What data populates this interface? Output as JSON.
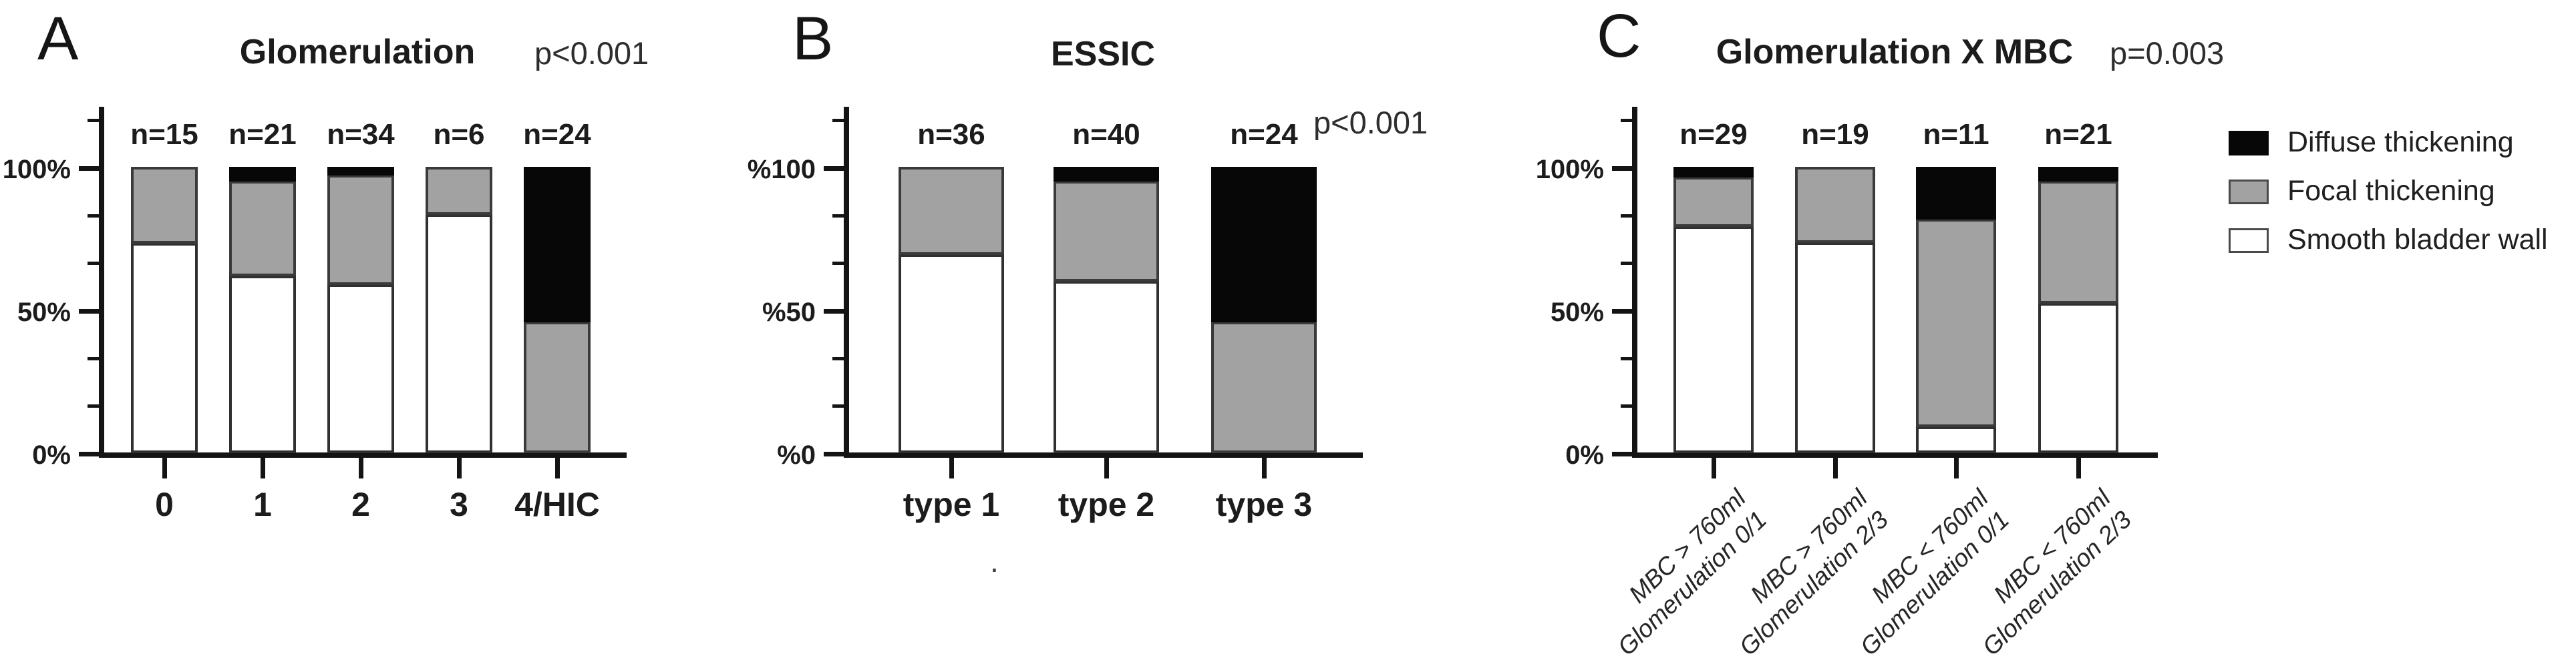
{
  "figure": {
    "background": "#ffffff",
    "colors": {
      "diffuse": "#070707",
      "focal": "#a2a2a2",
      "smooth": "#ffffff",
      "axis": "#141414",
      "bar_border": "#303030",
      "text": "#1c1c1c",
      "p_text": "#2e2e2e"
    }
  },
  "legend": {
    "items": [
      {
        "label": "Diffuse thickening",
        "key": "diffuse"
      },
      {
        "label": "Focal thickening",
        "key": "focal"
      },
      {
        "label": "Smooth bladder wall",
        "key": "smooth"
      }
    ]
  },
  "artifacts": {
    "stray_dot": "."
  },
  "chart_data": [
    {
      "type": "bar",
      "subtype": "stacked-percent",
      "panel": "A",
      "title": "Glomerulation",
      "p_value": "p<0.001",
      "categories": [
        "0",
        "1",
        "2",
        "3",
        "4/HIC"
      ],
      "n_labels": [
        "n=15",
        "n=21",
        "n=34",
        "n=6",
        "n=24"
      ],
      "y_tick_labels": [
        "0%",
        "50%",
        "100%"
      ],
      "y_tick_pcts": [
        0,
        50,
        100
      ],
      "ylim": [
        0,
        100
      ],
      "grid": false,
      "series": [
        {
          "name": "Smooth bladder wall",
          "key": "smooth",
          "values": [
            73.3,
            61.9,
            58.8,
            83.3,
            0
          ]
        },
        {
          "name": "Focal thickening",
          "key": "focal",
          "values": [
            26.7,
            33.3,
            38.3,
            16.7,
            45.8
          ]
        },
        {
          "name": "Diffuse thickening",
          "key": "diffuse",
          "values": [
            0,
            4.8,
            2.9,
            0,
            54.2
          ]
        }
      ]
    },
    {
      "type": "bar",
      "subtype": "stacked-percent",
      "panel": "B",
      "title": "ESSIC",
      "p_value": "p<0.001",
      "categories": [
        "type 1",
        "type 2",
        "type 3"
      ],
      "n_labels": [
        "n=36",
        "n=40",
        "n=24"
      ],
      "y_tick_labels": [
        "%0",
        "%50",
        "%100"
      ],
      "y_tick_pcts": [
        0,
        50,
        100
      ],
      "ylim": [
        0,
        100
      ],
      "grid": false,
      "series": [
        {
          "name": "Smooth bladder wall",
          "key": "smooth",
          "values": [
            69.4,
            60,
            0
          ]
        },
        {
          "name": "Focal thickening",
          "key": "focal",
          "values": [
            30.6,
            35,
            45.8
          ]
        },
        {
          "name": "Diffuse thickening",
          "key": "diffuse",
          "values": [
            0,
            5,
            54.2
          ]
        }
      ]
    },
    {
      "type": "bar",
      "subtype": "stacked-percent",
      "panel": "C",
      "title": "Glomerulation X MBC",
      "p_value": "p=0.003",
      "categories": [
        [
          "MBC > 760ml",
          "Glomerulation 0/1"
        ],
        [
          "MBC > 760ml",
          "Glomerulation 2/3"
        ],
        [
          "MBC < 760ml",
          "Glomerulation 0/1"
        ],
        [
          "MBC < 760ml",
          "Glomerulation 2/3"
        ]
      ],
      "n_labels": [
        "n=29",
        "n=19",
        "n=11",
        "n=21"
      ],
      "y_tick_labels": [
        "0%",
        "50%",
        "100%"
      ],
      "y_tick_pcts": [
        0,
        50,
        100
      ],
      "ylim": [
        0,
        100
      ],
      "grid": false,
      "series": [
        {
          "name": "Smooth bladder wall",
          "key": "smooth",
          "values": [
            79.3,
            73.7,
            9.1,
            52.4
          ]
        },
        {
          "name": "Focal thickening",
          "key": "focal",
          "values": [
            17.2,
            26.3,
            72.7,
            42.8
          ]
        },
        {
          "name": "Diffuse thickening",
          "key": "diffuse",
          "values": [
            3.5,
            0,
            18.2,
            4.8
          ]
        }
      ]
    }
  ]
}
